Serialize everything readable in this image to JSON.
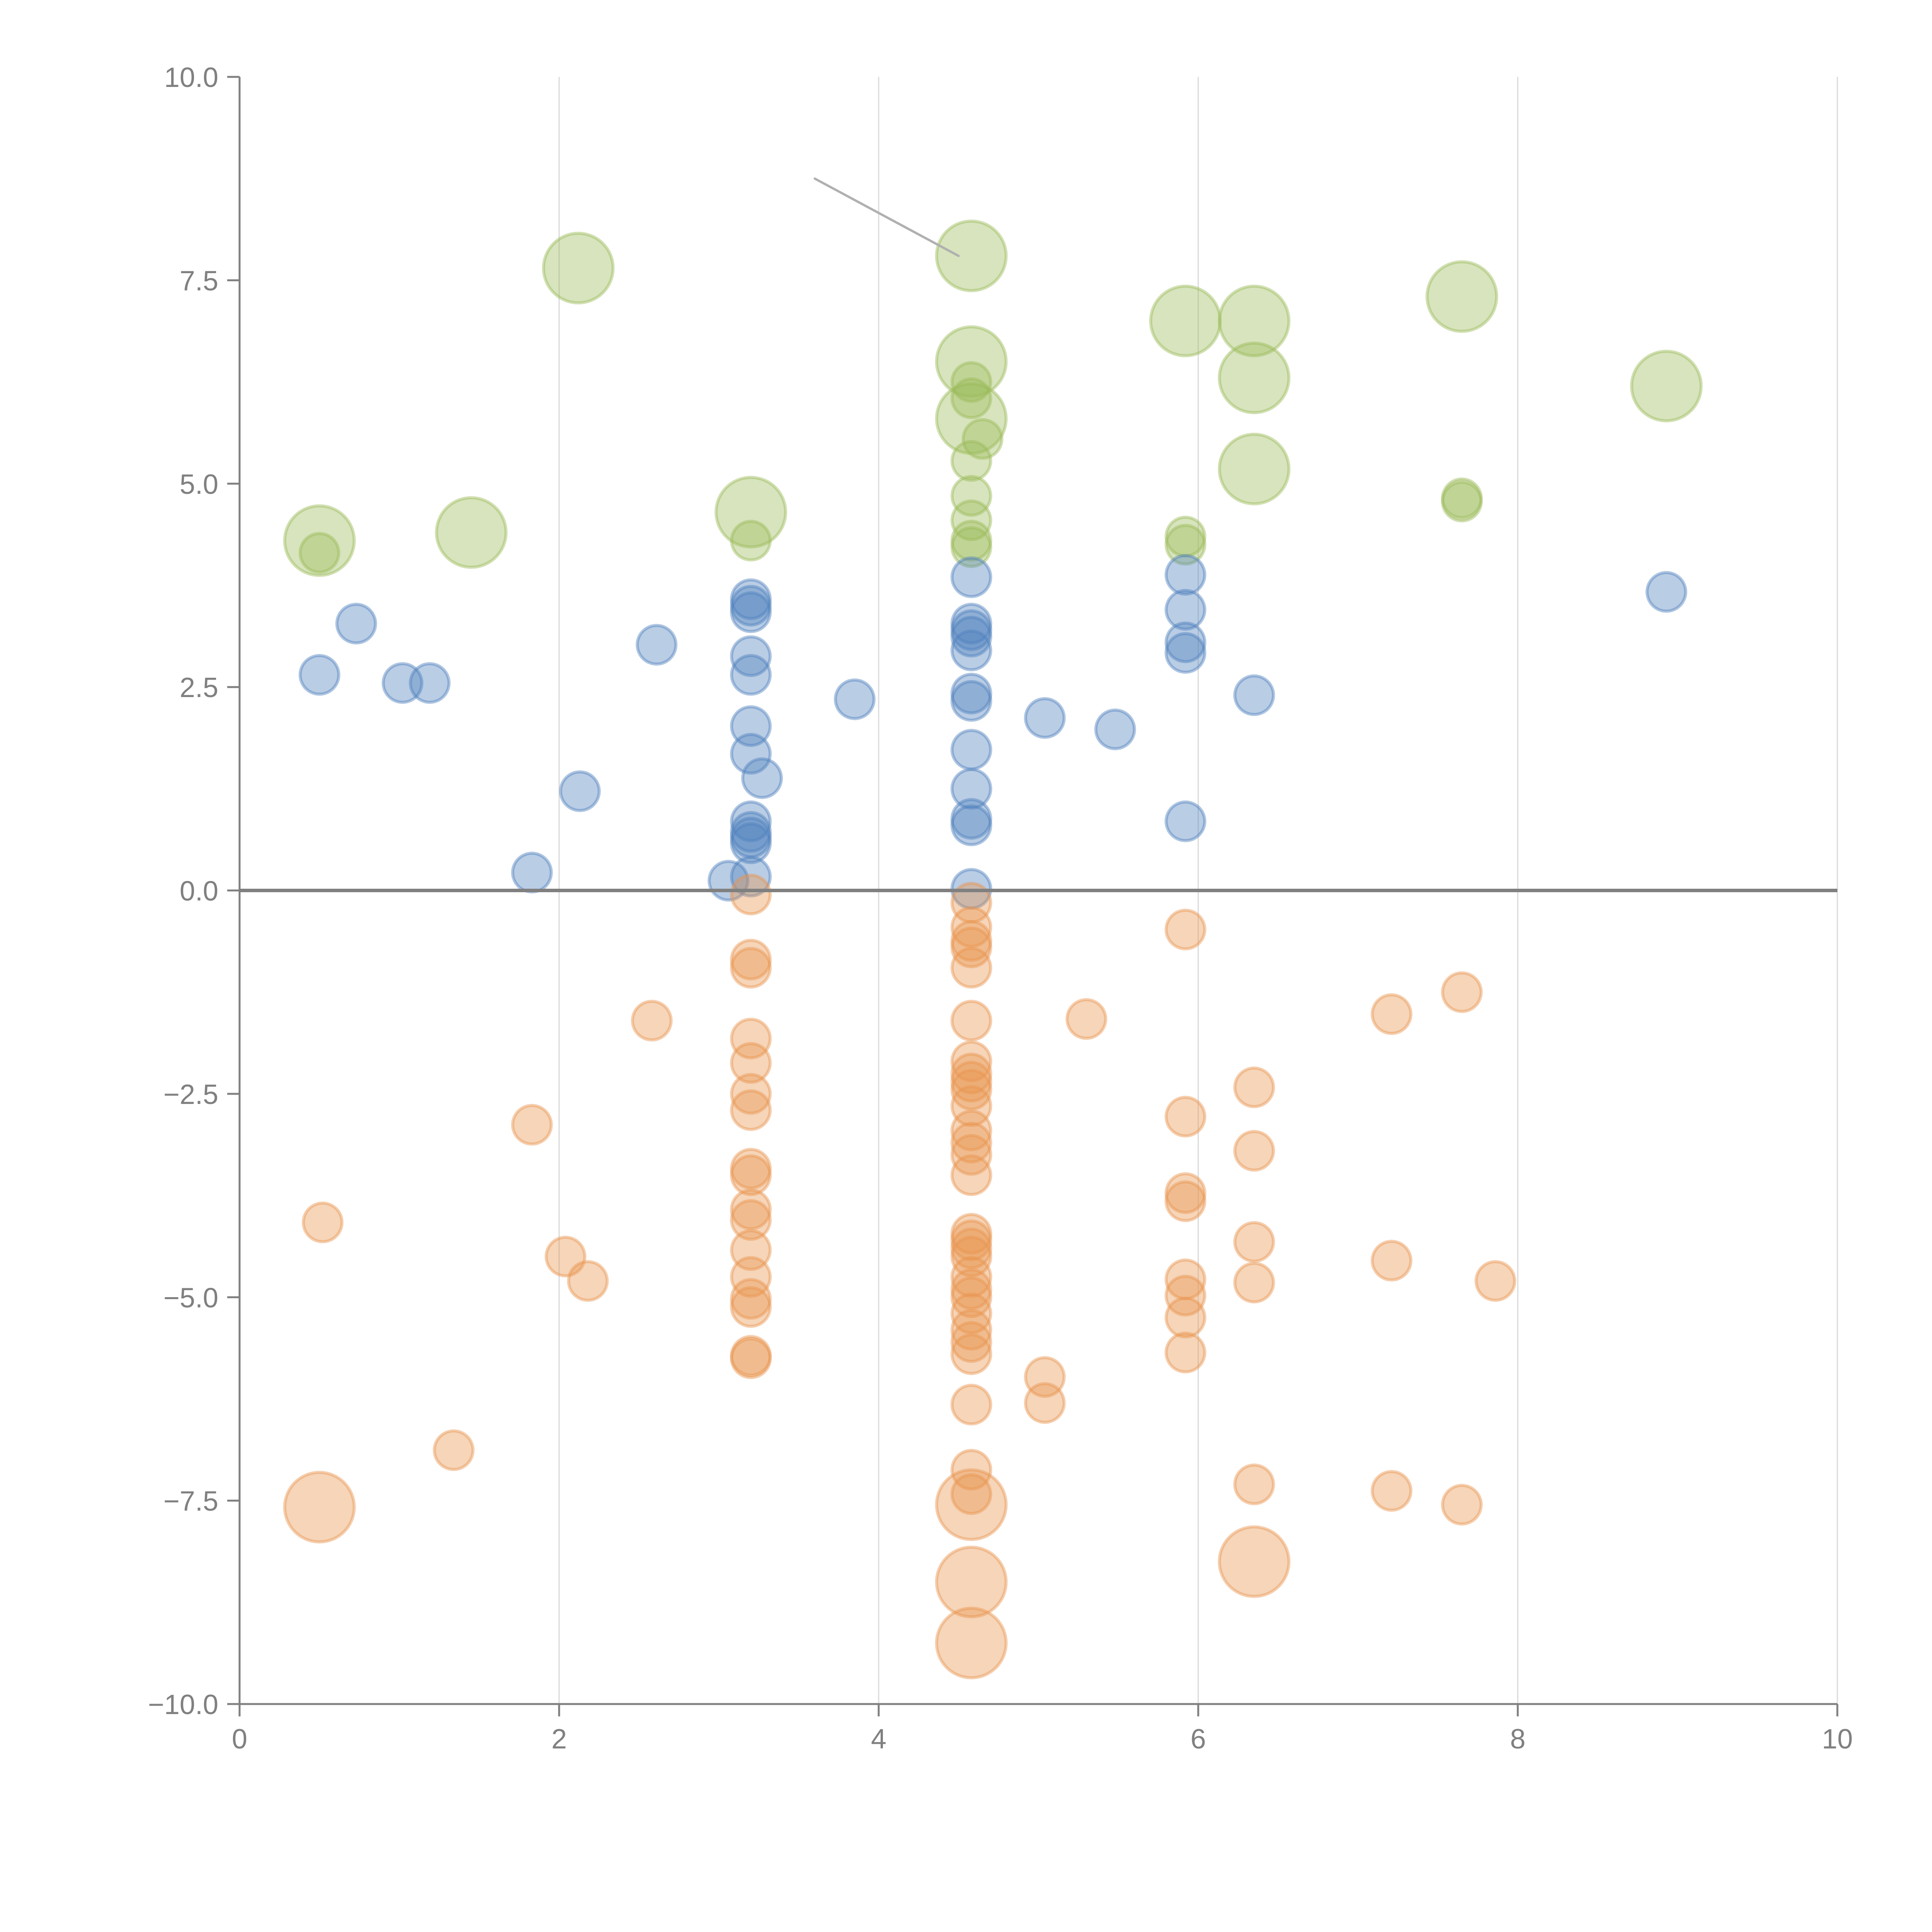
{
  "chart_data": {
    "type": "scatter",
    "subtype": "bubble",
    "title": "",
    "xlabel": "",
    "ylabel": "",
    "xlim": [
      0,
      10
    ],
    "ylim": [
      -10,
      10
    ],
    "x_ticks": [
      "0",
      "2",
      "4",
      "6",
      "8",
      "10"
    ],
    "y_ticks": [
      "10.0",
      "7.5",
      "5.0",
      "2.5",
      "0.0",
      "−2.5",
      "−5.0",
      "−7.5",
      "−10.0"
    ],
    "x_tick_values": [
      0,
      2,
      4,
      6,
      8,
      10
    ],
    "y_tick_values": [
      10,
      7.5,
      5,
      2.5,
      0,
      -2.5,
      -5,
      -7.5,
      -10
    ],
    "grid": "vertical",
    "zero_line": true,
    "legend": "none",
    "colors": {
      "green": "#9bbb59",
      "blue": "#4f81bd",
      "orange": "#e8954f",
      "axis": "#808080",
      "grid": "#d9d9d9"
    },
    "annotation_leader": {
      "from": [
        3.6,
        8.75
      ],
      "to": [
        4.5,
        7.8
      ]
    },
    "series": [
      {
        "name": "green",
        "color": "#9bbb59",
        "points": [
          [
            0.5,
            4.3,
            3
          ],
          [
            0.5,
            4.15,
            1
          ],
          [
            1.45,
            4.4,
            3
          ],
          [
            2.12,
            7.65,
            3
          ],
          [
            3.2,
            4.65,
            3
          ],
          [
            3.2,
            4.3,
            1
          ],
          [
            4.58,
            7.8,
            3
          ],
          [
            4.58,
            6.5,
            3
          ],
          [
            4.58,
            6.25,
            1
          ],
          [
            4.58,
            6.05,
            1
          ],
          [
            4.58,
            5.8,
            3
          ],
          [
            4.65,
            5.55,
            1
          ],
          [
            4.58,
            5.28,
            1
          ],
          [
            4.58,
            4.85,
            1
          ],
          [
            4.58,
            4.55,
            1
          ],
          [
            4.58,
            4.3,
            1
          ],
          [
            4.58,
            4.22,
            1
          ],
          [
            5.92,
            7.0,
            3
          ],
          [
            5.92,
            4.35,
            1
          ],
          [
            5.92,
            4.25,
            1
          ],
          [
            6.35,
            7.0,
            3
          ],
          [
            6.35,
            6.3,
            3
          ],
          [
            6.35,
            5.18,
            3
          ],
          [
            7.65,
            7.3,
            3
          ],
          [
            7.65,
            4.82,
            1
          ],
          [
            7.65,
            4.78,
            1
          ],
          [
            8.93,
            6.2,
            3
          ]
        ]
      },
      {
        "name": "blue",
        "color": "#4f81bd",
        "points": [
          [
            0.5,
            2.65,
            1
          ],
          [
            0.73,
            3.28,
            1
          ],
          [
            1.02,
            2.55,
            1
          ],
          [
            1.19,
            2.55,
            1
          ],
          [
            1.83,
            0.22,
            1
          ],
          [
            2.13,
            1.22,
            1
          ],
          [
            2.61,
            3.02,
            1
          ],
          [
            3.06,
            0.12,
            1
          ],
          [
            3.2,
            3.58,
            1
          ],
          [
            3.2,
            3.5,
            1
          ],
          [
            3.2,
            3.42,
            1
          ],
          [
            3.2,
            2.88,
            1
          ],
          [
            3.2,
            2.65,
            1
          ],
          [
            3.2,
            2.02,
            1
          ],
          [
            3.2,
            1.68,
            1
          ],
          [
            3.27,
            1.38,
            1
          ],
          [
            3.2,
            0.85,
            1
          ],
          [
            3.2,
            0.72,
            1
          ],
          [
            3.2,
            0.65,
            1
          ],
          [
            3.2,
            0.58,
            1
          ],
          [
            3.2,
            0.17,
            1
          ],
          [
            3.85,
            2.35,
            1
          ],
          [
            4.58,
            3.85,
            1
          ],
          [
            4.58,
            3.28,
            1
          ],
          [
            4.58,
            3.2,
            1
          ],
          [
            4.58,
            3.12,
            1
          ],
          [
            4.58,
            2.95,
            1
          ],
          [
            4.58,
            2.42,
            1
          ],
          [
            4.58,
            2.33,
            1
          ],
          [
            4.58,
            1.73,
            1
          ],
          [
            4.58,
            1.25,
            1
          ],
          [
            4.58,
            0.88,
            1
          ],
          [
            4.58,
            0.8,
            1
          ],
          [
            4.58,
            0.02,
            1
          ],
          [
            5.04,
            2.12,
            1
          ],
          [
            5.48,
            1.98,
            1
          ],
          [
            5.92,
            3.88,
            1
          ],
          [
            5.92,
            3.45,
            1
          ],
          [
            5.92,
            3.05,
            1
          ],
          [
            5.92,
            2.92,
            1
          ],
          [
            5.92,
            0.85,
            1
          ],
          [
            6.35,
            2.4,
            1
          ],
          [
            8.93,
            3.67,
            1
          ]
        ]
      },
      {
        "name": "orange",
        "color": "#e8954f",
        "points": [
          [
            0.52,
            -4.08,
            1
          ],
          [
            0.5,
            -7.58,
            3
          ],
          [
            1.34,
            -6.88,
            1
          ],
          [
            1.83,
            -2.88,
            1
          ],
          [
            2.04,
            -4.5,
            1
          ],
          [
            2.18,
            -4.8,
            1
          ],
          [
            2.58,
            -1.6,
            1
          ],
          [
            3.2,
            -0.05,
            1
          ],
          [
            3.2,
            -0.85,
            1
          ],
          [
            3.2,
            -0.95,
            1
          ],
          [
            3.2,
            -1.82,
            1
          ],
          [
            3.2,
            -2.12,
            1
          ],
          [
            3.2,
            -2.5,
            1
          ],
          [
            3.2,
            -2.7,
            1
          ],
          [
            3.2,
            -3.42,
            1
          ],
          [
            3.2,
            -3.5,
            1
          ],
          [
            3.2,
            -3.92,
            1
          ],
          [
            3.2,
            -4.05,
            1
          ],
          [
            3.2,
            -4.42,
            1
          ],
          [
            3.2,
            -4.75,
            1
          ],
          [
            3.2,
            -5.02,
            1
          ],
          [
            3.2,
            -5.12,
            1
          ],
          [
            3.2,
            -5.72,
            1
          ],
          [
            3.2,
            -5.75,
            1
          ],
          [
            4.58,
            -0.15,
            1
          ],
          [
            4.58,
            -0.45,
            1
          ],
          [
            4.58,
            -0.62,
            1
          ],
          [
            4.58,
            -0.7,
            1
          ],
          [
            4.58,
            -0.95,
            1
          ],
          [
            4.58,
            -1.6,
            1
          ],
          [
            4.58,
            -2.1,
            1
          ],
          [
            4.58,
            -2.25,
            1
          ],
          [
            4.58,
            -2.35,
            1
          ],
          [
            4.58,
            -2.45,
            1
          ],
          [
            4.58,
            -2.65,
            1
          ],
          [
            4.58,
            -2.95,
            1
          ],
          [
            4.58,
            -3.1,
            1
          ],
          [
            4.58,
            -3.25,
            1
          ],
          [
            4.58,
            -3.5,
            1
          ],
          [
            4.58,
            -4.22,
            1
          ],
          [
            4.58,
            -4.3,
            1
          ],
          [
            4.58,
            -4.4,
            1
          ],
          [
            4.58,
            -4.5,
            1
          ],
          [
            4.58,
            -4.75,
            1
          ],
          [
            4.58,
            -4.9,
            1
          ],
          [
            4.58,
            -5.0,
            1
          ],
          [
            4.58,
            -5.2,
            1
          ],
          [
            4.58,
            -5.4,
            1
          ],
          [
            4.58,
            -5.55,
            1
          ],
          [
            4.58,
            -5.7,
            1
          ],
          [
            4.58,
            -6.32,
            1
          ],
          [
            4.58,
            -7.12,
            1
          ],
          [
            4.58,
            -7.42,
            1
          ],
          [
            4.58,
            -7.55,
            3
          ],
          [
            4.58,
            -8.5,
            3
          ],
          [
            4.58,
            -9.25,
            3
          ],
          [
            5.04,
            -5.98,
            1
          ],
          [
            5.04,
            -6.3,
            1
          ],
          [
            5.3,
            -1.58,
            1
          ],
          [
            5.92,
            -0.48,
            1
          ],
          [
            5.92,
            -2.78,
            1
          ],
          [
            5.92,
            -3.72,
            1
          ],
          [
            5.92,
            -3.82,
            1
          ],
          [
            5.92,
            -4.78,
            1
          ],
          [
            5.92,
            -4.98,
            1
          ],
          [
            5.92,
            -5.25,
            1
          ],
          [
            5.92,
            -5.68,
            1
          ],
          [
            6.35,
            -2.42,
            1
          ],
          [
            6.35,
            -3.2,
            1
          ],
          [
            6.35,
            -4.32,
            1
          ],
          [
            6.35,
            -4.82,
            1
          ],
          [
            6.35,
            -7.3,
            1
          ],
          [
            6.35,
            -8.25,
            3
          ],
          [
            7.21,
            -1.52,
            1
          ],
          [
            7.21,
            -4.55,
            1
          ],
          [
            7.21,
            -7.38,
            1
          ],
          [
            7.65,
            -1.25,
            1
          ],
          [
            7.65,
            -7.55,
            1
          ],
          [
            7.86,
            -4.8,
            1
          ]
        ]
      }
    ]
  }
}
